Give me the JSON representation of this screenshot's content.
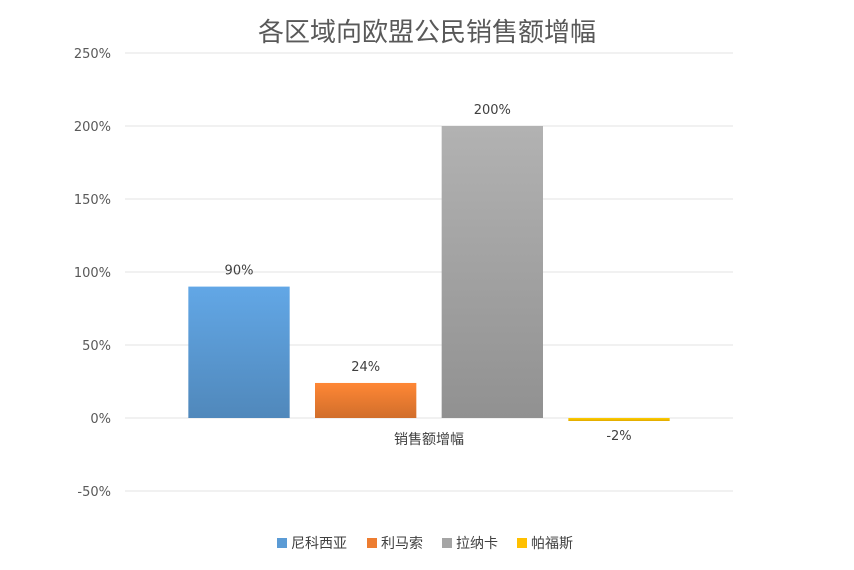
{
  "chart_data": {
    "type": "bar",
    "title": "各区域向欧盟公民销售额增幅",
    "categories": [
      "销售额增幅"
    ],
    "series": [
      {
        "name": "尼科西亚",
        "values": [
          90
        ],
        "label": "90%",
        "color": "#5b9bd5"
      },
      {
        "name": "利马索",
        "values": [
          24
        ],
        "label": "24%",
        "color": "#ed7d31"
      },
      {
        "name": "拉纳卡",
        "values": [
          200
        ],
        "label": "200%",
        "color": "#a5a5a5"
      },
      {
        "name": "帕福斯",
        "values": [
          -2
        ],
        "label": "-2%",
        "color": "#ffc000"
      }
    ],
    "ylim": [
      -50,
      250
    ],
    "yticks": [
      {
        "value": 250,
        "label": "250%"
      },
      {
        "value": 200,
        "label": "200%"
      },
      {
        "value": 150,
        "label": "150%"
      },
      {
        "value": 100,
        "label": "100%"
      },
      {
        "value": 50,
        "label": "50%"
      },
      {
        "value": 0,
        "label": "0%"
      },
      {
        "value": -50,
        "label": "-50%"
      }
    ],
    "grid": true,
    "legend_position": "bottom"
  }
}
